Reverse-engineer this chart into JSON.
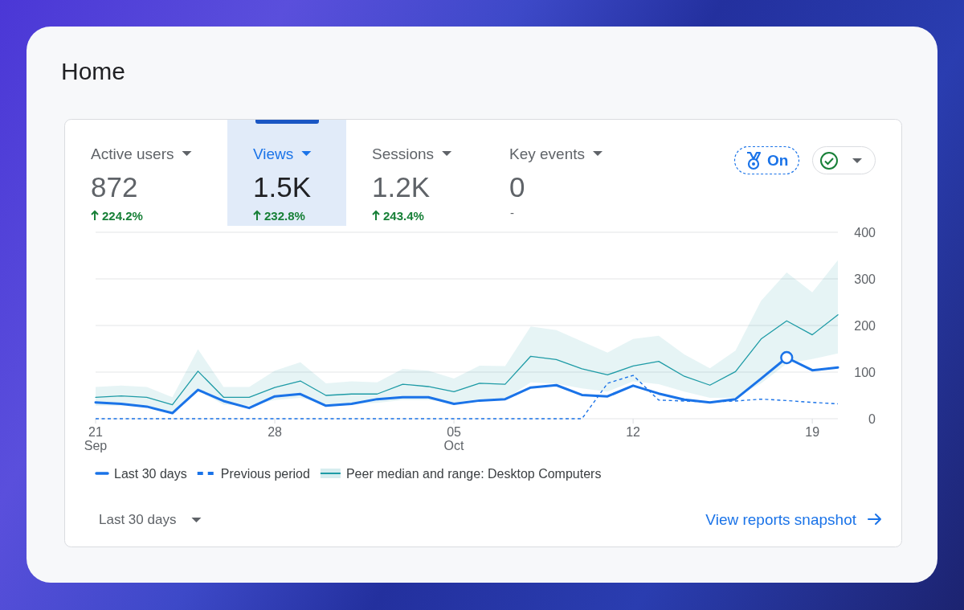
{
  "chart_data": {
    "type": "line",
    "title": "Home",
    "x": [
      "--09-21",
      "--09-22",
      "--09-23",
      "--09-24",
      "--09-25",
      "--09-26",
      "--09-27",
      "--09-28",
      "--09-29",
      "--09-30",
      "--10-01",
      "--10-02",
      "--10-03",
      "--10-04",
      "--10-05",
      "--10-06",
      "--10-07",
      "--10-08",
      "--10-09",
      "--10-10",
      "--10-11",
      "--10-12",
      "--10-13",
      "--10-14",
      "--10-15",
      "--10-16",
      "--10-17",
      "--10-18",
      "--10-19",
      "--10-20"
    ],
    "xlim": [
      "--09-21",
      "--10-20"
    ],
    "xticks": [
      {
        "value": "--09-21",
        "label": "21 Sep"
      },
      {
        "value": "--09-28",
        "label": "28"
      },
      {
        "value": "--10-05",
        "label": "05 Oct"
      },
      {
        "value": "--10-12",
        "label": "12"
      },
      {
        "value": "--10-19",
        "label": "19"
      }
    ],
    "ylim": [
      0,
      400
    ],
    "yticks": [
      0,
      100,
      200,
      300,
      400
    ],
    "grid": "y",
    "legend": "bottom",
    "series": [
      {
        "name": "Last 30 days",
        "color": "#1a73e8",
        "values": [
          35,
          32,
          26,
          12,
          62,
          38,
          23,
          48,
          53,
          28,
          32,
          42,
          46,
          46,
          32,
          39,
          42,
          67,
          72,
          51,
          48,
          71,
          54,
          41,
          35,
          42,
          86,
          131,
          104,
          110
        ]
      },
      {
        "name": "Previous period",
        "color": "#1a73e8",
        "line_style": "dashed",
        "values": [
          0,
          0,
          0,
          0,
          0,
          0,
          0,
          0,
          0,
          0,
          0,
          0,
          0,
          0,
          0,
          0,
          0,
          0,
          0,
          0,
          76,
          93,
          40,
          38,
          36,
          38,
          42,
          39,
          35,
          32
        ]
      },
      {
        "name": "Peer median and range: Desktop Computers",
        "color": "#1e9ba6",
        "values": [
          46,
          49,
          46,
          30,
          102,
          46,
          46,
          67,
          81,
          50,
          53,
          53,
          74,
          69,
          58,
          76,
          74,
          134,
          127,
          107,
          94,
          113,
          123,
          91,
          72,
          101,
          171,
          210,
          180,
          223
        ],
        "lower": [
          28,
          28,
          25,
          14,
          60,
          30,
          28,
          40,
          45,
          30,
          32,
          34,
          40,
          40,
          35,
          42,
          42,
          78,
          75,
          65,
          58,
          80,
          74,
          58,
          45,
          45,
          76,
          118,
          128,
          140
        ],
        "upper": [
          68,
          71,
          68,
          46,
          149,
          68,
          68,
          103,
          121,
          76,
          80,
          78,
          107,
          103,
          86,
          114,
          113,
          198,
          190,
          166,
          142,
          171,
          178,
          138,
          108,
          146,
          253,
          314,
          271,
          340
        ]
      },
      {
        "type": "scatter",
        "color": "#1a73e8",
        "marker": "circle",
        "x": [
          "--10-18"
        ],
        "values": [
          131
        ]
      }
    ],
    "annotations": [
      "Active users",
      "872",
      "224.2%",
      "Views",
      "1.5K",
      "232.8%",
      "Sessions",
      "1.2K",
      "243.4%",
      "Key events",
      "0",
      "-",
      "On",
      "Last 30 days",
      "View reports snapshot"
    ]
  }
}
